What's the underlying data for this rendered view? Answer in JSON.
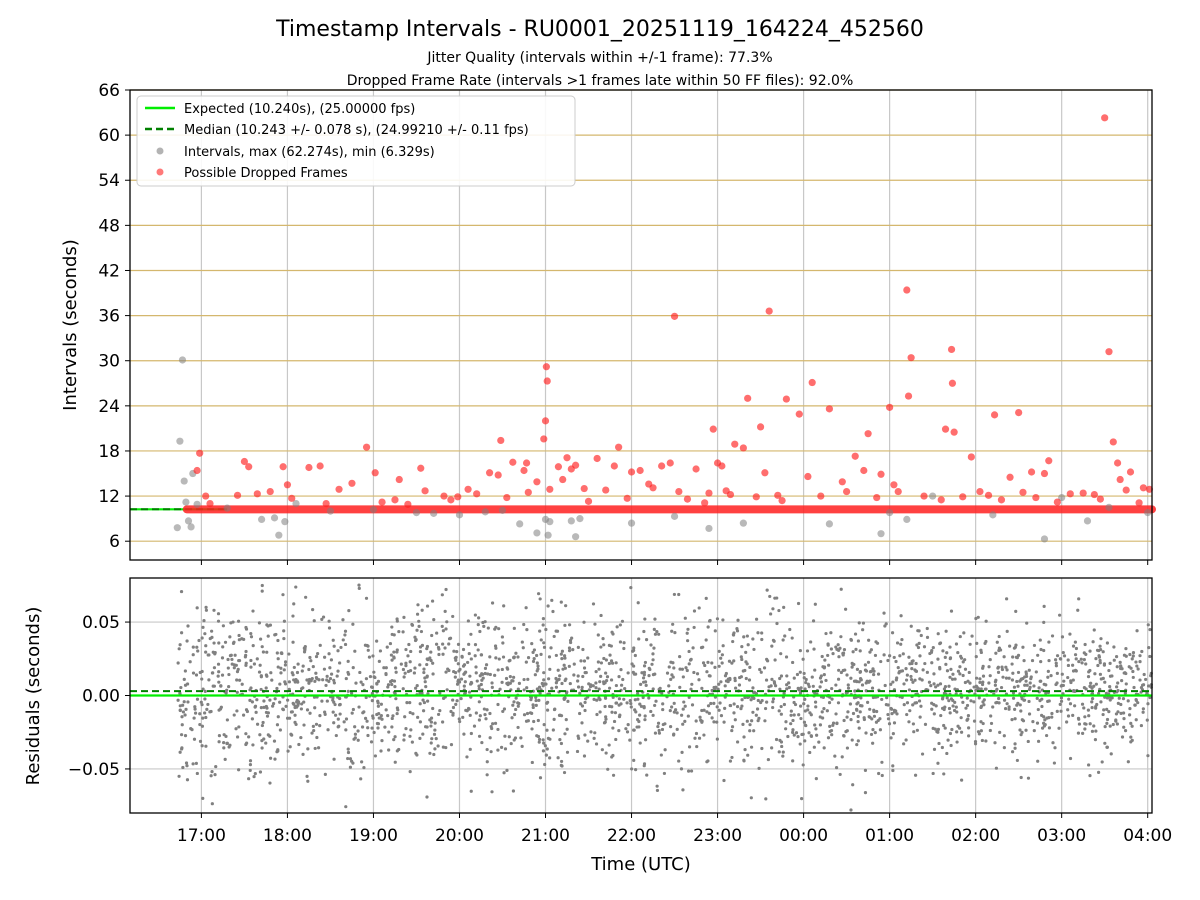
{
  "title": "Timestamp Intervals - RU0001_20251119_164224_452560",
  "subtitle_jitter": "Jitter Quality (intervals within +/-1 frame): 77.3%",
  "subtitle_dropped": "Dropped Frame Rate (intervals >1 frames late within 50 FF files): 92.0%",
  "colors": {
    "expected": "#00ee00",
    "median": "#008000",
    "interval": "#808080",
    "dropped": "#ff2020",
    "hgrid": "#d4b76e",
    "vgrid": "#c8c8c8"
  },
  "chart_data": [
    {
      "type": "scatter",
      "title": "",
      "xlabel": "",
      "ylabel": "Intervals (seconds)",
      "xlim_hours": [
        16.17,
        28.05
      ],
      "ylim": [
        3.5,
        66
      ],
      "yticks": [
        6,
        12,
        18,
        24,
        30,
        36,
        42,
        48,
        54,
        60,
        66
      ],
      "ytick_labels": [
        "6",
        "12",
        "18",
        "24",
        "30",
        "36",
        "42",
        "48",
        "54",
        "60",
        "66"
      ],
      "grid": true,
      "legend_position": "top-left",
      "legend": {
        "expected": "Expected (10.240s), (25.00000 fps)",
        "median": "Median (10.243 +/- 0.078 s), (24.99210 +/- 0.11 fps)",
        "intervals": "Intervals, max (62.274s), min (6.329s)",
        "dropped": "Possible Dropped Frames"
      },
      "expected_value": 10.24,
      "median_value": 10.243,
      "baseline": {
        "name": "Possible Dropped Frames (dense band)",
        "y": 10.24,
        "x_start": 16.83,
        "x_end": 28.05
      },
      "series": [
        {
          "name": "Intervals",
          "points": [
            [
              16.72,
              7.8
            ],
            [
              16.75,
              19.3
            ],
            [
              16.78,
              30.1
            ],
            [
              16.8,
              14.0
            ],
            [
              16.82,
              11.2
            ],
            [
              16.85,
              8.7
            ],
            [
              16.88,
              7.9
            ],
            [
              16.9,
              15.0
            ],
            [
              16.95,
              10.9
            ],
            [
              17.3,
              10.4
            ],
            [
              17.7,
              8.9
            ],
            [
              17.85,
              9.1
            ],
            [
              17.9,
              6.8
            ],
            [
              17.97,
              8.6
            ],
            [
              18.1,
              11.0
            ],
            [
              18.5,
              10.0
            ],
            [
              19.0,
              10.2
            ],
            [
              19.5,
              9.8
            ],
            [
              20.0,
              9.5
            ],
            [
              20.5,
              10.1
            ],
            [
              20.7,
              8.3
            ],
            [
              20.9,
              7.1
            ],
            [
              21.0,
              8.9
            ],
            [
              21.05,
              8.6
            ],
            [
              21.03,
              6.8
            ],
            [
              21.3,
              8.7
            ],
            [
              21.35,
              6.6
            ],
            [
              21.4,
              9.0
            ],
            [
              22.0,
              8.4
            ],
            [
              22.5,
              9.3
            ],
            [
              22.9,
              7.7
            ],
            [
              23.3,
              8.4
            ],
            [
              24.3,
              8.3
            ],
            [
              24.9,
              7.0
            ],
            [
              25.0,
              9.8
            ],
            [
              25.2,
              8.9
            ],
            [
              25.5,
              12.0
            ],
            [
              26.2,
              9.5
            ],
            [
              26.8,
              6.3
            ],
            [
              27.0,
              11.8
            ],
            [
              27.3,
              8.7
            ],
            [
              27.55,
              10.5
            ],
            [
              28.0,
              9.8
            ],
            [
              19.7,
              9.7
            ],
            [
              20.3,
              9.9
            ]
          ]
        },
        {
          "name": "Possible Dropped Frames",
          "points": [
            [
              16.95,
              15.4
            ],
            [
              16.98,
              17.7
            ],
            [
              17.05,
              12.0
            ],
            [
              17.42,
              12.1
            ],
            [
              17.5,
              16.6
            ],
            [
              17.55,
              15.9
            ],
            [
              17.8,
              12.6
            ],
            [
              17.95,
              15.9
            ],
            [
              18.05,
              11.7
            ],
            [
              18.25,
              15.8
            ],
            [
              18.38,
              16.0
            ],
            [
              18.6,
              12.9
            ],
            [
              18.75,
              13.7
            ],
            [
              18.92,
              18.5
            ],
            [
              19.02,
              15.1
            ],
            [
              19.25,
              11.5
            ],
            [
              19.3,
              14.2
            ],
            [
              19.55,
              15.7
            ],
            [
              19.6,
              12.7
            ],
            [
              19.82,
              12.0
            ],
            [
              19.98,
              11.9
            ],
            [
              20.1,
              12.9
            ],
            [
              20.35,
              15.1
            ],
            [
              20.45,
              14.8
            ],
            [
              20.48,
              19.4
            ],
            [
              20.62,
              16.5
            ],
            [
              20.75,
              15.4
            ],
            [
              20.78,
              16.4
            ],
            [
              20.9,
              13.9
            ],
            [
              20.98,
              19.6
            ],
            [
              21.0,
              22.0
            ],
            [
              21.01,
              29.2
            ],
            [
              21.02,
              27.3
            ],
            [
              21.05,
              12.9
            ],
            [
              21.15,
              15.9
            ],
            [
              21.25,
              17.1
            ],
            [
              21.3,
              15.6
            ],
            [
              21.35,
              16.1
            ],
            [
              21.45,
              13.0
            ],
            [
              21.6,
              17.0
            ],
            [
              21.8,
              16.0
            ],
            [
              21.85,
              18.5
            ],
            [
              22.0,
              15.2
            ],
            [
              22.1,
              15.4
            ],
            [
              22.2,
              13.6
            ],
            [
              22.35,
              16.0
            ],
            [
              22.45,
              16.4
            ],
            [
              22.5,
              35.9
            ],
            [
              22.55,
              12.6
            ],
            [
              22.75,
              15.6
            ],
            [
              22.9,
              12.4
            ],
            [
              22.95,
              20.9
            ],
            [
              23.0,
              16.4
            ],
            [
              23.05,
              16.0
            ],
            [
              23.1,
              12.7
            ],
            [
              23.2,
              18.9
            ],
            [
              23.3,
              18.4
            ],
            [
              23.35,
              25.0
            ],
            [
              23.5,
              21.2
            ],
            [
              23.55,
              15.1
            ],
            [
              23.6,
              36.6
            ],
            [
              23.7,
              12.1
            ],
            [
              23.8,
              24.9
            ],
            [
              23.95,
              22.9
            ],
            [
              24.05,
              14.6
            ],
            [
              24.1,
              27.1
            ],
            [
              24.3,
              23.6
            ],
            [
              24.5,
              12.6
            ],
            [
              24.6,
              17.3
            ],
            [
              24.7,
              15.4
            ],
            [
              24.75,
              20.3
            ],
            [
              24.9,
              14.9
            ],
            [
              25.0,
              23.8
            ],
            [
              25.1,
              12.6
            ],
            [
              25.2,
              39.4
            ],
            [
              25.22,
              25.3
            ],
            [
              25.25,
              30.4
            ],
            [
              25.6,
              11.5
            ],
            [
              25.65,
              20.9
            ],
            [
              25.72,
              31.5
            ],
            [
              25.73,
              27.0
            ],
            [
              25.75,
              20.5
            ],
            [
              25.95,
              17.2
            ],
            [
              26.05,
              12.6
            ],
            [
              26.22,
              22.8
            ],
            [
              26.4,
              14.5
            ],
            [
              26.5,
              23.1
            ],
            [
              26.65,
              15.2
            ],
            [
              26.8,
              15.0
            ],
            [
              26.85,
              16.7
            ],
            [
              26.95,
              11.2
            ],
            [
              27.25,
              12.4
            ],
            [
              27.38,
              12.2
            ],
            [
              27.5,
              62.3
            ],
            [
              27.55,
              31.2
            ],
            [
              27.6,
              19.2
            ],
            [
              27.65,
              16.4
            ],
            [
              27.68,
              14.2
            ],
            [
              27.8,
              15.2
            ],
            [
              27.95,
              13.1
            ],
            [
              28.02,
              12.9
            ],
            [
              17.1,
              11.0
            ],
            [
              17.65,
              12.3
            ],
            [
              18.0,
              13.5
            ],
            [
              18.45,
              11.0
            ],
            [
              19.1,
              11.2
            ],
            [
              19.4,
              10.9
            ],
            [
              19.9,
              11.5
            ],
            [
              20.2,
              12.3
            ],
            [
              20.55,
              11.8
            ],
            [
              20.8,
              12.5
            ],
            [
              21.2,
              14.2
            ],
            [
              21.5,
              11.3
            ],
            [
              21.7,
              12.8
            ],
            [
              21.95,
              11.7
            ],
            [
              22.25,
              13.1
            ],
            [
              22.65,
              11.6
            ],
            [
              22.85,
              11.1
            ],
            [
              23.15,
              12.2
            ],
            [
              23.45,
              11.9
            ],
            [
              23.75,
              11.4
            ],
            [
              24.2,
              12.0
            ],
            [
              24.45,
              13.9
            ],
            [
              24.85,
              11.8
            ],
            [
              25.05,
              13.5
            ],
            [
              25.4,
              12.0
            ],
            [
              25.85,
              11.9
            ],
            [
              26.15,
              12.1
            ],
            [
              26.3,
              11.5
            ],
            [
              26.55,
              12.5
            ],
            [
              26.7,
              11.8
            ],
            [
              27.1,
              12.3
            ],
            [
              27.45,
              11.6
            ],
            [
              27.75,
              12.8
            ],
            [
              27.9,
              11.1
            ]
          ]
        }
      ]
    },
    {
      "type": "scatter",
      "title": "",
      "xlabel": "Time (UTC)",
      "ylabel": "Residuals (seconds)",
      "xlim_hours": [
        16.17,
        28.05
      ],
      "ylim": [
        -0.08,
        0.08
      ],
      "yticks": [
        -0.05,
        0.0,
        0.05
      ],
      "ytick_labels": [
        "−0.05",
        "0.00",
        "0.05"
      ],
      "xticks_hours": [
        17,
        18,
        19,
        20,
        21,
        22,
        23,
        24,
        25,
        26,
        27,
        28
      ],
      "xtick_labels": [
        "17:00",
        "18:00",
        "19:00",
        "20:00",
        "21:00",
        "22:00",
        "23:00",
        "00:00",
        "01:00",
        "02:00",
        "03:00",
        "04:00"
      ],
      "grid": true,
      "expected_value": 0.0,
      "median_value": 0.003,
      "residuals": {
        "name": "Residuals",
        "x_start": 16.72,
        "x_end": 28.05,
        "count": 2600,
        "spread_start": 0.032,
        "spread_end": 0.021,
        "offset": 0.003,
        "ylim_clip": [
          -0.079,
          0.079
        ],
        "seed": 12345
      }
    }
  ]
}
